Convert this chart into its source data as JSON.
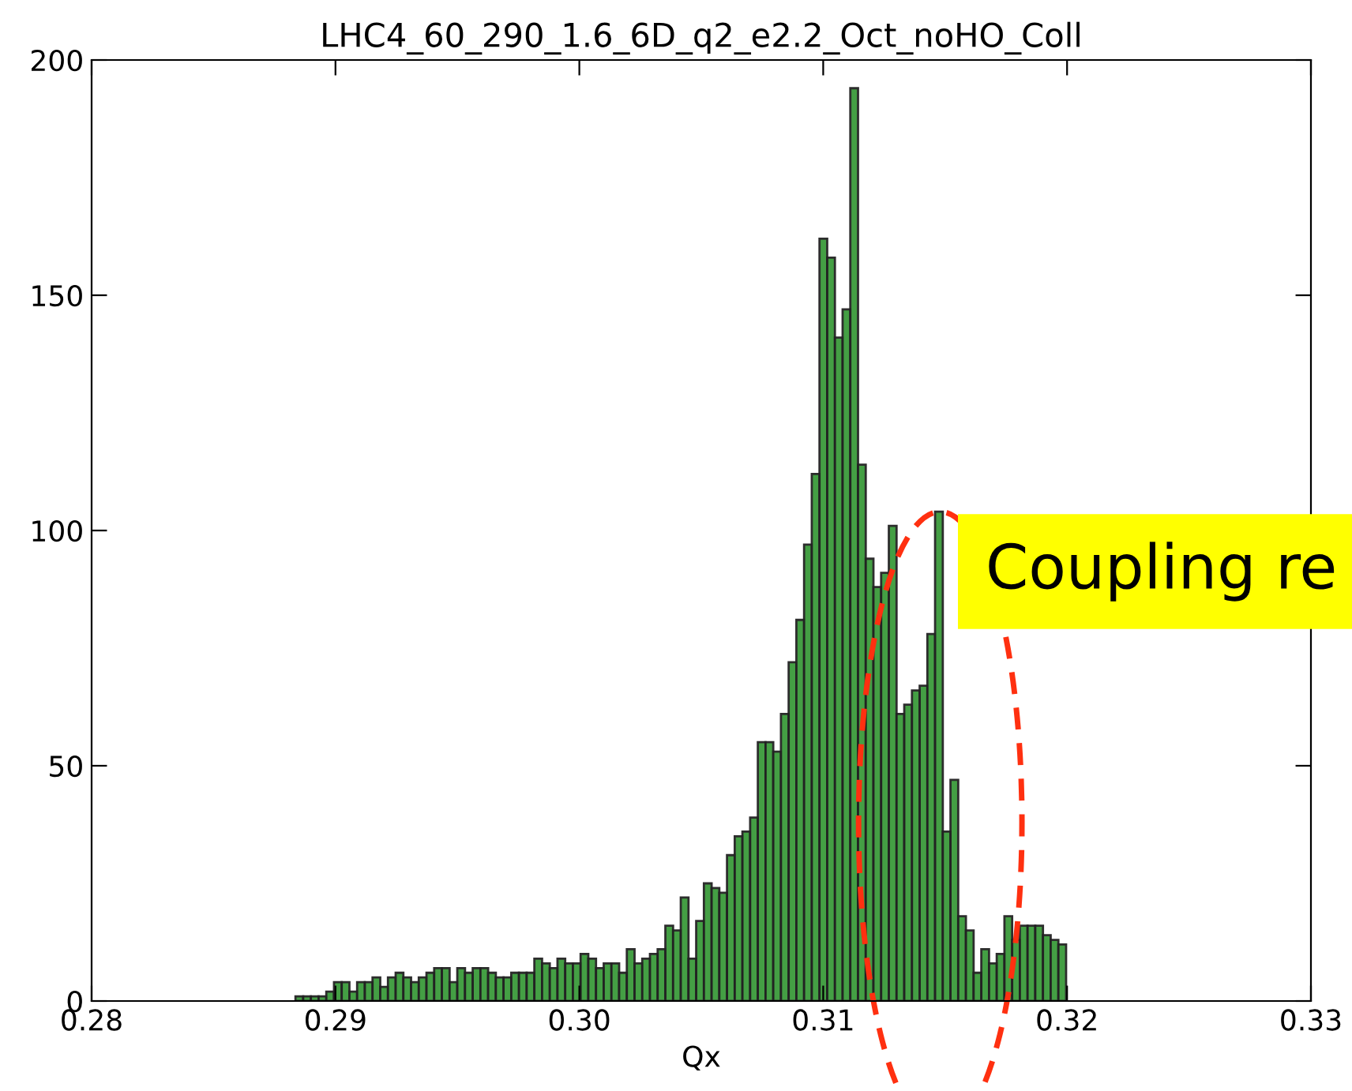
{
  "chart_data": {
    "type": "histogram",
    "title": "LHC4_60_290_1.6_6D_q2_e2.2_Oct_noHO_Coll",
    "xlabel": "Qx",
    "bins": [
      0.28836,
      0.288676,
      0.288992,
      0.289308,
      0.289624,
      0.28994,
      0.290256,
      0.290572,
      0.290888,
      0.291204,
      0.29152,
      0.291836,
      0.292152,
      0.292468,
      0.292784,
      0.2931,
      0.293416,
      0.293732,
      0.294048,
      0.294364,
      0.29468,
      0.294996,
      0.295312,
      0.295628,
      0.295944,
      0.29626,
      0.296576,
      0.296892,
      0.297208,
      0.297524,
      0.29784,
      0.298156,
      0.298472,
      0.298788,
      0.299104,
      0.29942,
      0.299736,
      0.300052,
      0.300368,
      0.300684,
      0.301,
      0.301316,
      0.301632,
      0.301948,
      0.302264,
      0.30258,
      0.302896,
      0.303212,
      0.303528,
      0.303844,
      0.30416,
      0.304476,
      0.304792,
      0.305108,
      0.305424,
      0.30574,
      0.306056,
      0.306372,
      0.306688,
      0.307004,
      0.30732,
      0.307636,
      0.307952,
      0.308268,
      0.308584,
      0.3089,
      0.309216,
      0.309532,
      0.309848,
      0.310164,
      0.31048,
      0.310796,
      0.311112,
      0.311428,
      0.311744,
      0.31206,
      0.312376,
      0.312692,
      0.313008,
      0.313324,
      0.31364,
      0.313956,
      0.314272,
      0.314588,
      0.314904,
      0.31522,
      0.315536,
      0.315852,
      0.316168,
      0.316484,
      0.3168,
      0.317116,
      0.317432,
      0.317748,
      0.318064,
      0.31838,
      0.318696,
      0.319012,
      0.319328,
      0.319644,
      0.31996
    ],
    "values": [
      1,
      1,
      1,
      1,
      2,
      4,
      4,
      2,
      4,
      4,
      5,
      3,
      5,
      6,
      5,
      4,
      5,
      6,
      7,
      7,
      4,
      7,
      6,
      7,
      7,
      6,
      5,
      5,
      6,
      6,
      6,
      9,
      8,
      7,
      9,
      8,
      8,
      10,
      9,
      7,
      8,
      8,
      6,
      11,
      8,
      9,
      10,
      11,
      16,
      15,
      22,
      9,
      17,
      25,
      24,
      23,
      31,
      35,
      36,
      39,
      55,
      55,
      53,
      61,
      72,
      81,
      97,
      112,
      162,
      158,
      141,
      147,
      194,
      114,
      94,
      88,
      91,
      101,
      61,
      63,
      66,
      67,
      78,
      104,
      36,
      47,
      18,
      15,
      6,
      11,
      8,
      10,
      18,
      13,
      16,
      16,
      16,
      14,
      13,
      12
    ],
    "color": "#3a9a3a",
    "xlim": [
      0.28,
      0.33
    ],
    "ylim": [
      0,
      200
    ],
    "xticks": [
      0.28,
      0.29,
      {
        "value": 0.3,
        "label": "0.30"
      },
      0.31,
      0.32,
      0.33
    ],
    "yticks": [
      0,
      50,
      100,
      150,
      200
    ],
    "grid": false,
    "legend": false,
    "annotations": [
      {
        "text": "Coupling re",
        "x": 0.3148,
        "y": 104
      }
    ]
  }
}
